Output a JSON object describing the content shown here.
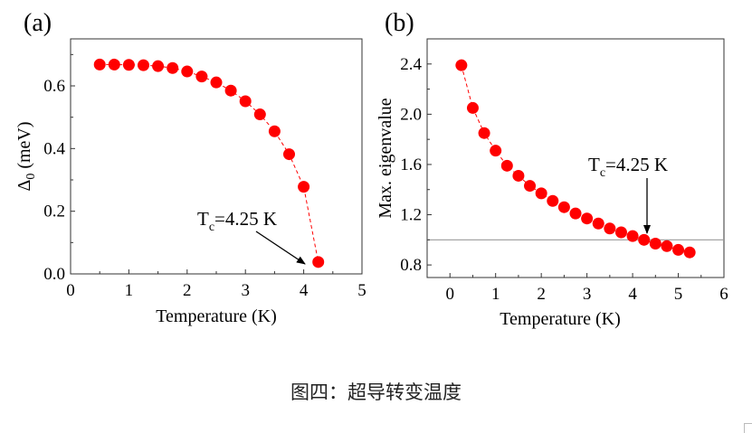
{
  "chart_data": [
    {
      "type": "line",
      "panel_label": "(a)",
      "xlabel": "Temperature (K)",
      "ylabel_symbol": "Δ",
      "ylabel_sub": "0",
      "ylabel_unit": " (meV)",
      "xlim": [
        0,
        5
      ],
      "ylim": [
        0,
        0.75
      ],
      "xticks": [
        "0",
        "1",
        "2",
        "3",
        "4",
        "5"
      ],
      "yticks": [
        "0.0",
        "0.2",
        "0.4",
        "0.6"
      ],
      "series": [
        {
          "name": "gap",
          "color": "#ff0000",
          "x": [
            0.5,
            0.75,
            1.0,
            1.25,
            1.5,
            1.75,
            2.0,
            2.25,
            2.5,
            2.75,
            3.0,
            3.25,
            3.5,
            3.75,
            4.0,
            4.25
          ],
          "y": [
            0.668,
            0.668,
            0.667,
            0.666,
            0.663,
            0.657,
            0.646,
            0.63,
            0.611,
            0.585,
            0.551,
            0.509,
            0.455,
            0.382,
            0.278,
            0.038
          ]
        }
      ],
      "annotation": {
        "main": "T",
        "sub": "c",
        "rest": "=4.25 K"
      }
    },
    {
      "type": "line",
      "panel_label": "(b)",
      "xlabel": "Temperature (K)",
      "ylabel": "Max. eigenvalue",
      "xlim": [
        -0.5,
        6
      ],
      "ylim": [
        0.7,
        2.6
      ],
      "xticks": [
        "0",
        "1",
        "2",
        "3",
        "4",
        "5",
        "6"
      ],
      "yticks": [
        "0.8",
        "1.2",
        "1.6",
        "2.0",
        "2.4"
      ],
      "reference_line": 1.0,
      "series": [
        {
          "name": "eigenvalue",
          "color": "#ff0000",
          "x": [
            0.25,
            0.5,
            0.75,
            1.0,
            1.25,
            1.5,
            1.75,
            2.0,
            2.25,
            2.5,
            2.75,
            3.0,
            3.25,
            3.5,
            3.75,
            4.0,
            4.25,
            4.5,
            4.75,
            5.0,
            5.25
          ],
          "y": [
            2.39,
            2.05,
            1.85,
            1.71,
            1.59,
            1.51,
            1.43,
            1.37,
            1.31,
            1.26,
            1.21,
            1.17,
            1.13,
            1.09,
            1.06,
            1.03,
            1.0,
            0.97,
            0.95,
            0.92,
            0.9
          ]
        }
      ],
      "annotation": {
        "main": "T",
        "sub": "c",
        "rest": "=4.25 K"
      }
    }
  ],
  "caption": "图四：超导转变温度"
}
